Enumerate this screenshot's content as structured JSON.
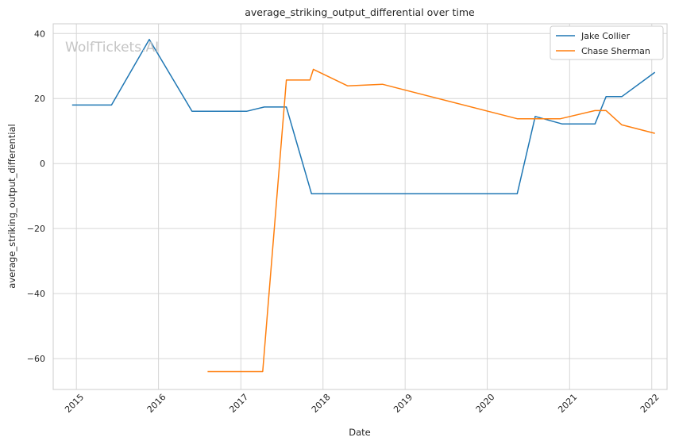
{
  "chart_data": {
    "type": "line",
    "title": "average_striking_output_differential over time",
    "xlabel": "Date",
    "ylabel": "average_striking_output_differential",
    "watermark": "WolfTickets.AI",
    "x_ticks": [
      "2015",
      "2016",
      "2017",
      "2018",
      "2019",
      "2020",
      "2021",
      "2022"
    ],
    "y_ticks": [
      40,
      20,
      0,
      -20,
      -40,
      -60
    ],
    "xlim": [
      "2014-09-20",
      "2022-03-10"
    ],
    "ylim": [
      -69.5,
      43.0
    ],
    "grid": true,
    "legend_position": "top-right",
    "series": [
      {
        "name": "Jake Collier",
        "color": "#1f77b4",
        "points": [
          [
            "2014-12-13",
            18.0
          ],
          [
            "2015-06-06",
            18.0
          ],
          [
            "2015-11-21",
            38.2
          ],
          [
            "2016-05-29",
            16.1
          ],
          [
            "2017-01-28",
            16.1
          ],
          [
            "2017-04-15",
            17.4
          ],
          [
            "2017-07-22",
            17.4
          ],
          [
            "2017-11-11",
            -9.3
          ],
          [
            "2020-05-13",
            -9.3
          ],
          [
            "2020-08-01",
            14.5
          ],
          [
            "2020-11-28",
            12.2
          ],
          [
            "2021-04-24",
            12.2
          ],
          [
            "2021-06-12",
            20.6
          ],
          [
            "2021-08-21",
            20.6
          ],
          [
            "2022-01-15",
            28.1
          ]
        ]
      },
      {
        "name": "Chase Sherman",
        "color": "#ff7f0e",
        "points": [
          [
            "2016-08-06",
            -64.0
          ],
          [
            "2017-04-08",
            -64.0
          ],
          [
            "2017-07-22",
            25.7
          ],
          [
            "2017-11-04",
            25.7
          ],
          [
            "2017-11-19",
            29.0
          ],
          [
            "2018-04-21",
            23.9
          ],
          [
            "2018-09-22",
            24.4
          ],
          [
            "2020-05-13",
            13.8
          ],
          [
            "2020-11-21",
            13.8
          ],
          [
            "2021-04-24",
            16.3
          ],
          [
            "2021-06-12",
            16.3
          ],
          [
            "2021-08-21",
            11.9
          ],
          [
            "2022-01-15",
            9.3
          ]
        ]
      }
    ]
  }
}
